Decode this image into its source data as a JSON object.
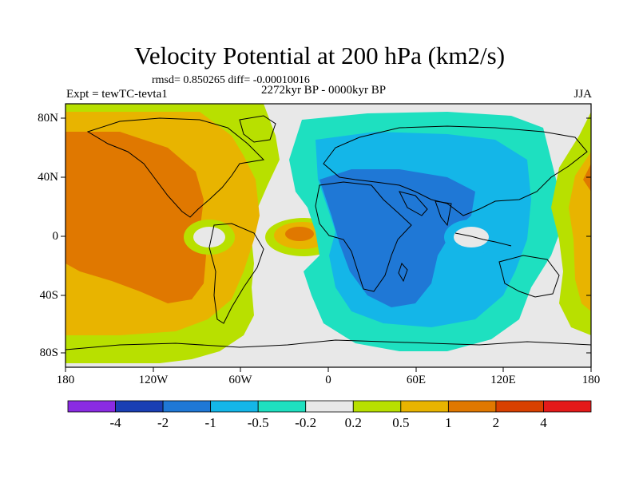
{
  "title": "Velocity Potential at 200 hPa (km2/s)",
  "stats": "rmsd= 0.850265 diff= -0.00010016",
  "experiment": "Expt = tewTC-tevta1",
  "period": "2272kyr BP - 0000kyr BP",
  "season": "JJA",
  "map": {
    "lat_labels": [
      "80N",
      "40N",
      "0",
      "40S",
      "80S"
    ],
    "lon_labels": [
      "180",
      "120W",
      "60W",
      "0",
      "60E",
      "120E",
      "180"
    ]
  },
  "colorbar": {
    "labels": [
      "-4",
      "-2",
      "-1",
      "-0.5",
      "-0.2",
      "0.2",
      "0.5",
      "1",
      "2",
      "4"
    ],
    "colors": [
      "#8a2be2",
      "#1a3fb4",
      "#1f78d6",
      "#14b6e8",
      "#1ee0c0",
      "#e8e8e8",
      "#b8e000",
      "#e8b400",
      "#e07800",
      "#d84000",
      "#e41a1a"
    ]
  }
}
